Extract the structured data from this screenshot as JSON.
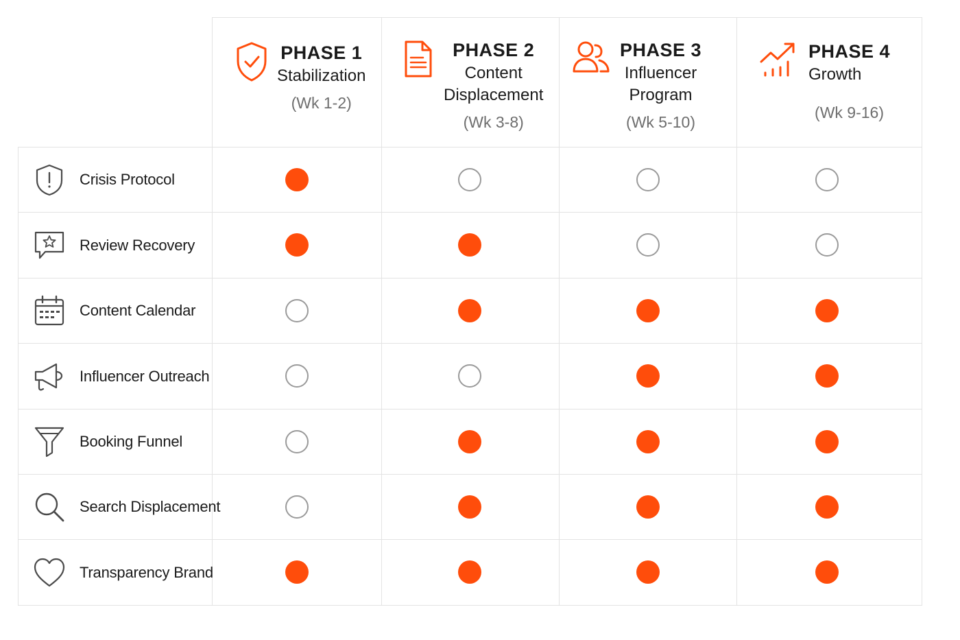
{
  "colors": {
    "accent": "#ff4d0b",
    "grid": "#e3e3e3",
    "empty_ring": "#9a9a9a",
    "muted_text": "#6e6e6e"
  },
  "phases": [
    {
      "title": "PHASE 1",
      "name_lines": [
        "Stabilization"
      ],
      "weeks": "(Wk 1-2)",
      "icon": "shield-check-icon"
    },
    {
      "title": "PHASE 2",
      "name_lines": [
        "Content",
        "Displacement"
      ],
      "weeks": "(Wk 3-8)",
      "icon": "document-icon"
    },
    {
      "title": "PHASE 3",
      "name_lines": [
        "Influencer",
        "Program"
      ],
      "weeks": "(Wk 5-10)",
      "icon": "people-icon"
    },
    {
      "title": "PHASE 4",
      "name_lines": [
        "Growth"
      ],
      "weeks": "(Wk 9-16)",
      "icon": "growth-chart-icon"
    }
  ],
  "rows": [
    {
      "label": "Crisis Protocol",
      "icon": "shield-alert-icon",
      "active": [
        true,
        false,
        false,
        false
      ]
    },
    {
      "label": "Review Recovery",
      "icon": "star-chat-icon",
      "active": [
        true,
        true,
        false,
        false
      ]
    },
    {
      "label": "Content Calendar",
      "icon": "calendar-icon",
      "active": [
        false,
        true,
        true,
        true
      ]
    },
    {
      "label": "Influencer Outreach",
      "icon": "megaphone-icon",
      "active": [
        false,
        false,
        true,
        true
      ]
    },
    {
      "label": "Booking Funnel",
      "icon": "funnel-icon",
      "active": [
        false,
        true,
        true,
        true
      ]
    },
    {
      "label": "Search Displacement",
      "icon": "search-icon",
      "active": [
        false,
        true,
        true,
        true
      ]
    },
    {
      "label": "Transparency Brand",
      "icon": "heart-icon",
      "active": [
        true,
        true,
        true,
        true
      ]
    }
  ]
}
